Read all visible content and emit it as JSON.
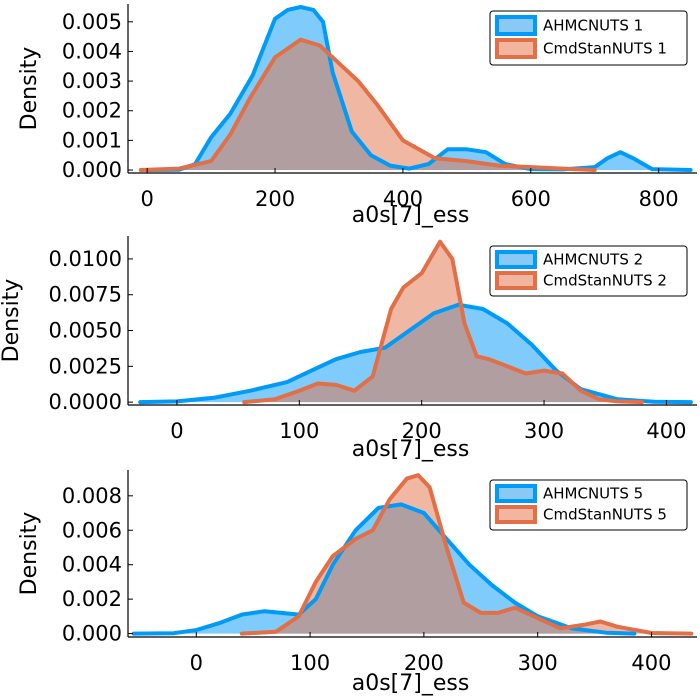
{
  "colors": {
    "blue": "#009af9",
    "orange": "#e26f46",
    "blue_fill": "#8ac8f5",
    "orange_fill": "#f2b5a0"
  },
  "chart_data": [
    {
      "type": "area",
      "xlabel": "a0s[7]_ess",
      "ylabel": "Density",
      "xlim": [
        -30,
        860
      ],
      "ylim": [
        -0.0001,
        0.0056
      ],
      "xticks": [
        0,
        200,
        400,
        600,
        800
      ],
      "xtick_labels": [
        "0",
        "200",
        "400",
        "600",
        "800"
      ],
      "yticks": [
        0,
        0.001,
        0.002,
        0.003,
        0.004,
        0.005
      ],
      "ytick_labels": [
        "0.000",
        "0.001",
        "0.002",
        "0.003",
        "0.004",
        "0.005"
      ],
      "legend": "top-right",
      "series": [
        {
          "name": "AHMCNUTS 1",
          "color": "#009af9",
          "x": [
            0,
            50,
            75,
            100,
            130,
            165,
            200,
            220,
            240,
            260,
            275,
            290,
            320,
            350,
            380,
            410,
            440,
            470,
            500,
            530,
            560,
            600,
            650,
            700,
            720,
            740,
            760,
            790,
            850
          ],
          "y": [
            0,
            1e-05,
            0.0002,
            0.0011,
            0.0019,
            0.0032,
            0.0051,
            0.0054,
            0.0055,
            0.0054,
            0.005,
            0.0033,
            0.0013,
            0.0005,
            0.00015,
            5e-05,
            0.0002,
            0.0007,
            0.0007,
            0.0006,
            0.0002,
            3e-05,
            2e-05,
            0.0001,
            0.0004,
            0.0006,
            0.0004,
            3e-05,
            0
          ]
        },
        {
          "name": "CmdStanNUTS 1",
          "color": "#e26f46",
          "x": [
            -10,
            50,
            100,
            130,
            160,
            200,
            240,
            270,
            300,
            330,
            360,
            400,
            450,
            500,
            550,
            600,
            650,
            700
          ],
          "y": [
            0,
            5e-05,
            0.0003,
            0.0012,
            0.0024,
            0.0038,
            0.0044,
            0.0042,
            0.0036,
            0.003,
            0.0022,
            0.001,
            0.0004,
            0.0003,
            0.00015,
            0.0001,
            5e-05,
            0
          ]
        }
      ]
    },
    {
      "type": "area",
      "xlabel": "a0s[7]_ess",
      "ylabel": "Density",
      "xlim": [
        -40,
        425
      ],
      "ylim": [
        -0.0002,
        0.0116
      ],
      "xticks": [
        0,
        100,
        200,
        300,
        400
      ],
      "xtick_labels": [
        "0",
        "100",
        "200",
        "300",
        "400"
      ],
      "yticks": [
        0,
        0.0025,
        0.005,
        0.0075,
        0.01
      ],
      "ytick_labels": [
        "0.0000",
        "0.0025",
        "0.0050",
        "0.0075",
        "0.0100"
      ],
      "legend": "top-right",
      "series": [
        {
          "name": "AHMCNUTS 2",
          "color": "#009af9",
          "x": [
            -30,
            0,
            30,
            60,
            90,
            110,
            130,
            150,
            170,
            190,
            210,
            230,
            250,
            270,
            290,
            310,
            330,
            360,
            390,
            420
          ],
          "y": [
            0,
            5e-05,
            0.0003,
            0.0008,
            0.0014,
            0.0022,
            0.003,
            0.0035,
            0.0038,
            0.005,
            0.0062,
            0.0068,
            0.0065,
            0.0055,
            0.004,
            0.0022,
            0.0009,
            0.0002,
            3e-05,
            0
          ]
        },
        {
          "name": "CmdStanNUTS 2",
          "color": "#e26f46",
          "x": [
            55,
            80,
            100,
            115,
            130,
            145,
            160,
            175,
            185,
            200,
            215,
            225,
            235,
            245,
            255,
            270,
            285,
            300,
            315,
            330,
            345,
            360,
            380
          ],
          "y": [
            0,
            0.0002,
            0.0008,
            0.0013,
            0.0012,
            0.0008,
            0.0018,
            0.0065,
            0.008,
            0.009,
            0.0112,
            0.01,
            0.0055,
            0.0032,
            0.003,
            0.0025,
            0.002,
            0.0022,
            0.002,
            0.0008,
            0.0002,
            5e-05,
            0
          ]
        }
      ]
    },
    {
      "type": "area",
      "xlabel": "a0s[7]_ess",
      "ylabel": "Density",
      "xlim": [
        -60,
        440
      ],
      "ylim": [
        -0.0002,
        0.0095
      ],
      "xticks": [
        0,
        100,
        200,
        300,
        400
      ],
      "xtick_labels": [
        "0",
        "100",
        "200",
        "300",
        "400"
      ],
      "yticks": [
        0,
        0.002,
        0.004,
        0.006,
        0.008
      ],
      "ytick_labels": [
        "0.000",
        "0.002",
        "0.004",
        "0.006",
        "0.008"
      ],
      "legend": "top-right",
      "series": [
        {
          "name": "AHMCNUTS 5",
          "color": "#009af9",
          "x": [
            -55,
            -20,
            0,
            20,
            40,
            60,
            75,
            90,
            105,
            120,
            140,
            160,
            180,
            200,
            220,
            240,
            260,
            280,
            300,
            330,
            360,
            385
          ],
          "y": [
            0,
            2e-05,
            0.0002,
            0.0006,
            0.0011,
            0.0013,
            0.0012,
            0.0011,
            0.002,
            0.004,
            0.006,
            0.0073,
            0.0075,
            0.007,
            0.0055,
            0.004,
            0.0028,
            0.0018,
            0.001,
            0.0003,
            5e-05,
            0
          ]
        },
        {
          "name": "CmdStanNUTS 5",
          "color": "#e26f46",
          "x": [
            40,
            70,
            90,
            105,
            120,
            140,
            155,
            170,
            185,
            195,
            205,
            220,
            235,
            250,
            265,
            280,
            300,
            320,
            340,
            355,
            370,
            400,
            435
          ],
          "y": [
            0,
            0.0001,
            0.001,
            0.003,
            0.0045,
            0.0055,
            0.006,
            0.0078,
            0.009,
            0.0092,
            0.0085,
            0.005,
            0.0018,
            0.0012,
            0.0012,
            0.0015,
            0.0009,
            0.0003,
            0.0005,
            0.0007,
            0.0004,
            3e-05,
            0
          ]
        }
      ]
    }
  ]
}
